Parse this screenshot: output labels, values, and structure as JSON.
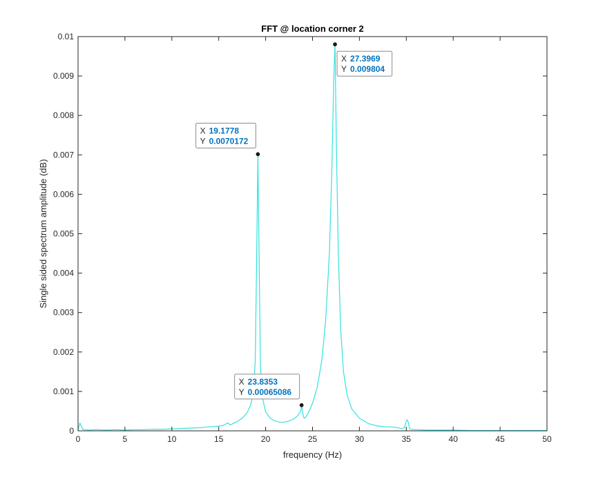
{
  "chart_data": {
    "type": "line",
    "title": "FFT @ location corner 2",
    "xlabel": "frequency (Hz)",
    "ylabel": "Single sided spectrum amplitude (dB)",
    "xlim": [
      0,
      50
    ],
    "ylim": [
      0,
      0.01
    ],
    "x_ticks": [
      0,
      5,
      10,
      15,
      20,
      25,
      30,
      35,
      40,
      45,
      50
    ],
    "x_tick_labels": [
      "0",
      "5",
      "10",
      "15",
      "20",
      "25",
      "30",
      "35",
      "40",
      "45",
      "50"
    ],
    "y_ticks": [
      0,
      0.001,
      0.002,
      0.003,
      0.004,
      0.005,
      0.006,
      0.007,
      0.008,
      0.009,
      0.01
    ],
    "y_tick_labels": [
      "0",
      "0.001",
      "0.002",
      "0.003",
      "0.004",
      "0.005",
      "0.006",
      "0.007",
      "0.008",
      "0.009",
      "0.01"
    ],
    "grid": false,
    "series": [
      {
        "color": "#33e0e0",
        "x": [
          0,
          0.2,
          0.35,
          0.5,
          0.8,
          1.2,
          2,
          3,
          4,
          5,
          6,
          7,
          8,
          9,
          10,
          11,
          12,
          13,
          14,
          15,
          15.5,
          15.8,
          16,
          16.2,
          16.5,
          17,
          17.5,
          18,
          18.4,
          18.7,
          18.9,
          19.05,
          19.1778,
          19.3,
          19.45,
          19.7,
          20,
          20.5,
          21,
          21.5,
          22,
          22.5,
          23,
          23.4,
          23.6,
          23.75,
          23.8353,
          23.95,
          24.1,
          24.3,
          24.6,
          25,
          25.5,
          26,
          26.4,
          26.8,
          27.05,
          27.25,
          27.3969,
          27.55,
          27.75,
          28,
          28.3,
          28.7,
          29.2,
          30,
          31,
          32,
          33,
          33.5,
          34,
          34.5,
          34.8,
          35,
          35.1,
          35.2,
          35.35,
          35.5,
          36,
          37,
          38,
          39,
          40,
          42,
          44,
          46,
          48,
          50
        ],
        "y": [
          2e-05,
          0.0002,
          0.00012,
          4e-05,
          3e-05,
          2e-05,
          3e-05,
          2e-05,
          3e-05,
          2e-05,
          3e-05,
          3e-05,
          4e-05,
          4e-05,
          5e-05,
          6e-05,
          7e-05,
          8e-05,
          0.0001,
          0.00012,
          0.00014,
          0.00018,
          0.0002,
          0.00015,
          0.00018,
          0.00024,
          0.00032,
          0.00045,
          0.00065,
          0.001,
          0.0018,
          0.0045,
          0.0070172,
          0.0045,
          0.0016,
          0.0008,
          0.00048,
          0.00032,
          0.00025,
          0.00022,
          0.00022,
          0.00025,
          0.0003,
          0.00038,
          0.00045,
          0.0005,
          0.00065086,
          0.00045,
          0.00032,
          0.00035,
          0.00048,
          0.0007,
          0.0011,
          0.0018,
          0.0028,
          0.0045,
          0.0065,
          0.0088,
          0.009804,
          0.0072,
          0.0045,
          0.0026,
          0.0015,
          0.0009,
          0.00055,
          0.00032,
          0.00018,
          0.00012,
          0.0001,
          0.0001,
          8e-05,
          6e-05,
          8e-05,
          0.00025,
          0.00028,
          0.00022,
          6e-05,
          4e-05,
          3e-05,
          2e-05,
          2e-05,
          2e-05,
          2e-05,
          1e-05,
          1e-05,
          1e-05,
          1e-05,
          1e-05
        ]
      }
    ],
    "datatips": [
      {
        "x": 19.1778,
        "y": 0.0070172,
        "x_text": "19.1778",
        "y_text": "0.0070172",
        "placement": "upper-left"
      },
      {
        "x": 27.3969,
        "y": 0.009804,
        "x_text": "27.3969",
        "y_text": "0.009804",
        "placement": "lower-right"
      },
      {
        "x": 23.8353,
        "y": 0.00065086,
        "x_text": "23.8353",
        "y_text": "0.00065086",
        "placement": "upper-left"
      }
    ],
    "datatip_key_x": "X",
    "datatip_key_y": "Y",
    "datatip_value_color": "#0072bd"
  }
}
